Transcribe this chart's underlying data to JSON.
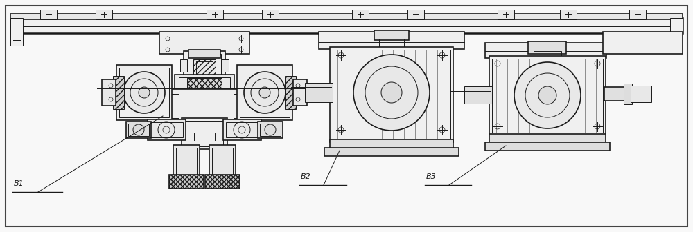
{
  "bg_color": "#f8f8f8",
  "line_color": "#1a1a1a",
  "fig_width": 10.0,
  "fig_height": 3.36,
  "dpi": 100,
  "labels": [
    "B1",
    "B2",
    "B3"
  ],
  "label_fontsize": 8
}
